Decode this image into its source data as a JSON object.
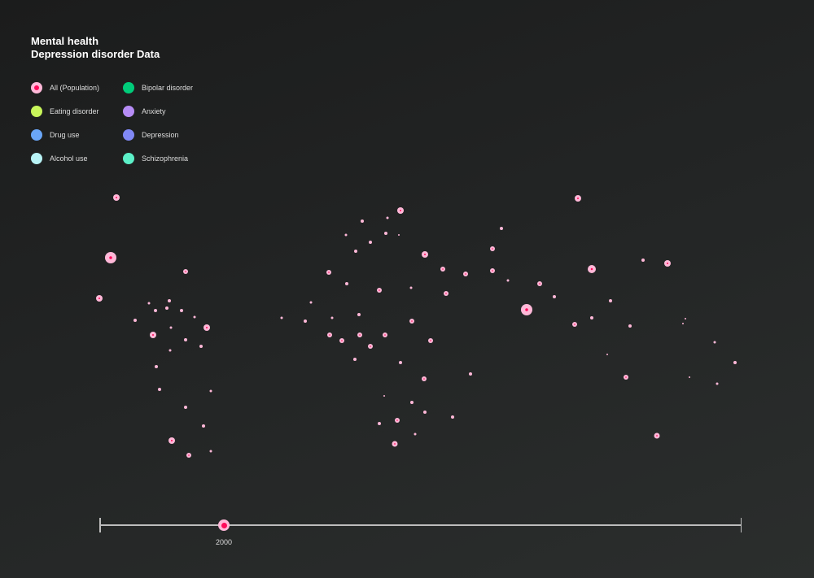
{
  "title": {
    "line1": "Mental health",
    "line2": "Depression disorder Data"
  },
  "legend": [
    {
      "label": "All (Population)",
      "color": "#ffb8d8",
      "icon": "population-dot-icon"
    },
    {
      "label": "Bipolar disorder",
      "color": "#00cc7a",
      "icon": "dot-icon"
    },
    {
      "label": "Eating disorder",
      "color": "#c8f55a",
      "icon": "dot-icon"
    },
    {
      "label": "Anxiety",
      "color": "#b68cf5",
      "icon": "dot-icon"
    },
    {
      "label": "Drug use",
      "color": "#6aa6f8",
      "icon": "dot-icon"
    },
    {
      "label": "Depression",
      "color": "#8088f5",
      "icon": "dot-icon"
    },
    {
      "label": "Alcohol use",
      "color": "#b8f3f6",
      "icon": "dot-icon"
    },
    {
      "label": "Schizophrenia",
      "color": "#5cf0c8",
      "icon": "dot-icon"
    }
  ],
  "map": {
    "dot_color": "#ffb8d8",
    "center_color": "#ff0a5a",
    "active_series": "All (Population)"
  },
  "timeline": {
    "selected_year": "2000"
  }
}
